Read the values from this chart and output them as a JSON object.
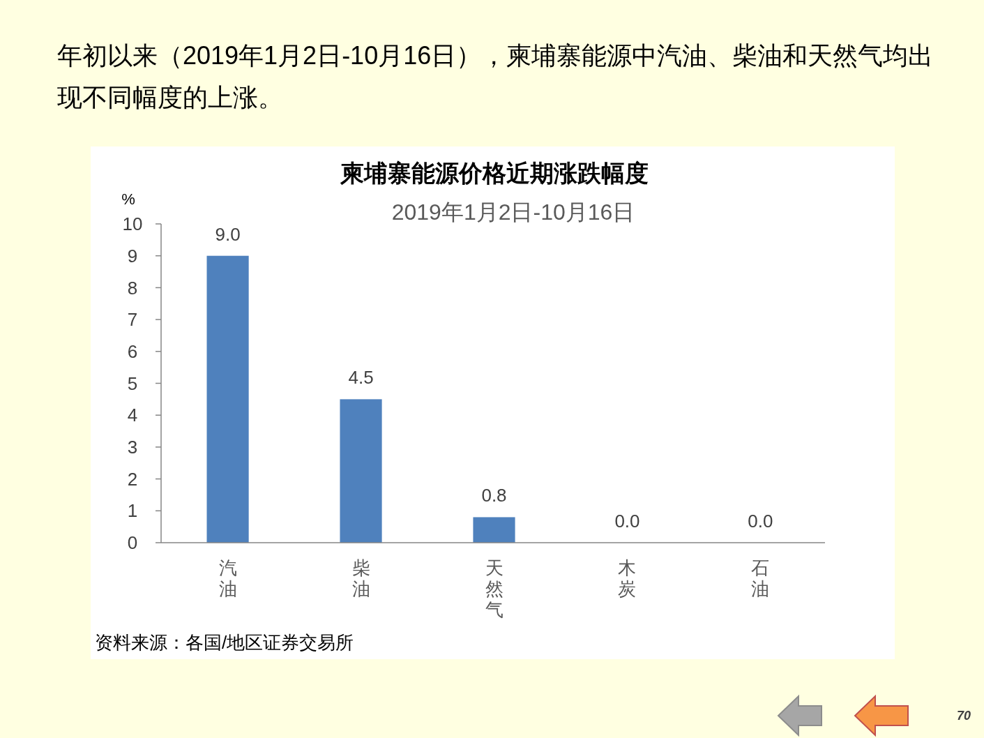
{
  "chart_data": {
    "type": "bar",
    "title": "柬埔寨能源价格近期涨跌幅度",
    "subtitle": "2019年1月2日-10月16日",
    "ylabel": "%",
    "categories": [
      "汽油",
      "柴油",
      "天然气",
      "木炭",
      "石油"
    ],
    "values": [
      9.0,
      4.5,
      0.8,
      0.0,
      0.0
    ],
    "value_labels": [
      "9.0",
      "4.5",
      "0.8",
      "0.0",
      "0.0"
    ],
    "color": "#4f81bd",
    "ylim": [
      0,
      10
    ],
    "yticks": [
      0,
      1,
      2,
      3,
      4,
      5,
      6,
      7,
      8,
      9,
      10
    ],
    "grid": false,
    "annotations": [
      "年初以来（2019年1月2日-10月16日），柬埔寨能源中汽油、柴油和天然气均出现不同幅度的上涨。",
      "资料来源：各国/地区证券交易所",
      "70"
    ]
  }
}
